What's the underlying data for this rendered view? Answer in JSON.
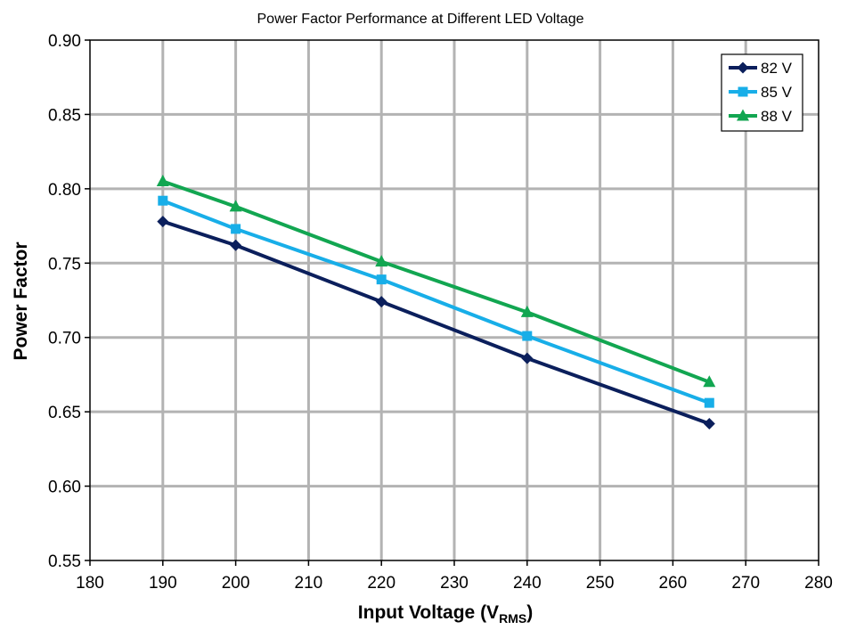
{
  "chart_data": {
    "type": "line",
    "title": "Power Factor Performance at Different LED Voltage",
    "xlabel": "Input Voltage (V",
    "xlabel_subscript": "RMS",
    "xlabel_suffix": ")",
    "ylabel": "Power Factor",
    "xlim": [
      180,
      280
    ],
    "ylim": [
      0.55,
      0.9
    ],
    "x_ticks": [
      "180",
      "190",
      "200",
      "210",
      "220",
      "230",
      "240",
      "250",
      "260",
      "270",
      "280"
    ],
    "y_ticks": [
      "0.55",
      "0.60",
      "0.65",
      "0.70",
      "0.75",
      "0.80",
      "0.85",
      "0.90"
    ],
    "grid": true,
    "legend_position": "top-right",
    "x": [
      190,
      200,
      220,
      240,
      265
    ],
    "series": [
      {
        "name": "82 V",
        "color": "#0b1f5c",
        "marker": "diamond",
        "values": [
          0.778,
          0.762,
          0.724,
          0.686,
          0.642
        ]
      },
      {
        "name": "85 V",
        "color": "#18aee8",
        "marker": "square",
        "values": [
          0.792,
          0.773,
          0.739,
          0.701,
          0.656
        ]
      },
      {
        "name": "88 V",
        "color": "#12a651",
        "marker": "triangle",
        "values": [
          0.805,
          0.788,
          0.751,
          0.717,
          0.67
        ]
      }
    ]
  }
}
